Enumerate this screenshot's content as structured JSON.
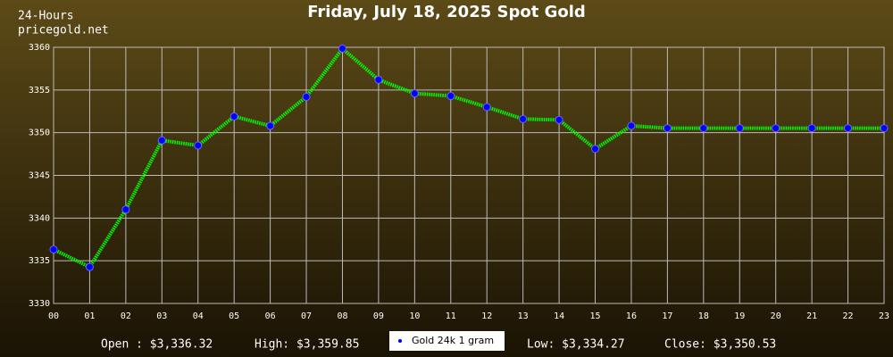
{
  "chart_data": {
    "type": "line",
    "title": "Friday, July 18, 2025 Spot Gold",
    "subtitle_lines": [
      "24-Hours",
      "pricegold.net"
    ],
    "categories": [
      "00",
      "01",
      "02",
      "03",
      "04",
      "05",
      "06",
      "07",
      "08",
      "09",
      "10",
      "11",
      "12",
      "13",
      "14",
      "15",
      "16",
      "17",
      "18",
      "19",
      "20",
      "21",
      "22",
      "23"
    ],
    "series": [
      {
        "name": "Gold 24k 1 gram",
        "color": "#00ff00",
        "marker_color": "#0000ff",
        "values": [
          3336.32,
          3334.27,
          3341.0,
          3349.1,
          3348.5,
          3351.9,
          3350.8,
          3354.2,
          3359.85,
          3356.2,
          3354.6,
          3354.3,
          3353.0,
          3351.6,
          3351.5,
          3348.1,
          3350.8,
          3350.53,
          3350.53,
          3350.53,
          3350.53,
          3350.53,
          3350.53,
          3350.53
        ]
      }
    ],
    "ylim": [
      3330,
      3360
    ],
    "yticks": [
      3330,
      3335,
      3340,
      3345,
      3350,
      3355,
      3360
    ],
    "grid": true,
    "stats": {
      "open": "Open : $3,336.32",
      "high": "High: $3,359.85",
      "low": "Low: $3,334.27",
      "close": "Close: $3,350.53"
    }
  }
}
